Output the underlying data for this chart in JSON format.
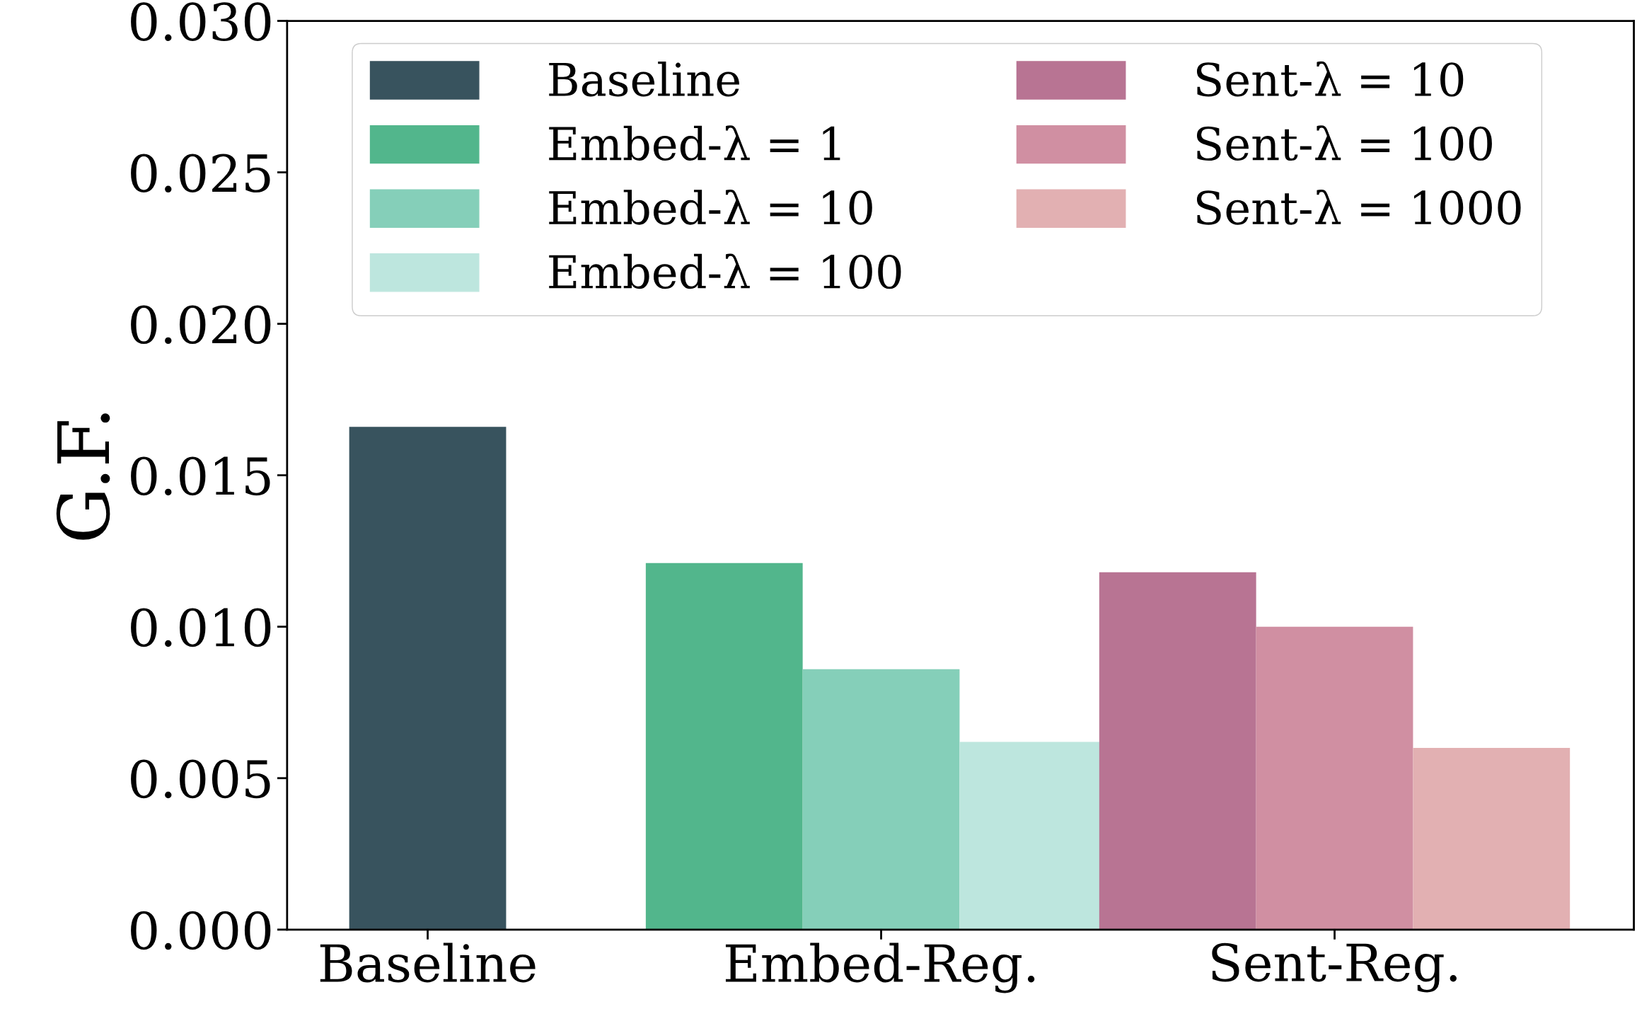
{
  "chart_data": {
    "type": "bar",
    "ylabel": "G.F.",
    "categories": [
      "Baseline",
      "Embed-Reg.",
      "Sent-Reg."
    ],
    "series": [
      {
        "name": "Baseline",
        "color": "#38535e",
        "values": [
          0.0166,
          null,
          null
        ]
      },
      {
        "name": "Embed-λ = 1",
        "color": "#52b68c",
        "values": [
          null,
          0.0121,
          null
        ]
      },
      {
        "name": "Embed-λ = 10",
        "color": "#85cfb9",
        "values": [
          null,
          0.0086,
          null
        ]
      },
      {
        "name": "Embed-λ = 100",
        "color": "#bde6de",
        "values": [
          null,
          0.0062,
          null
        ]
      },
      {
        "name": "Sent-λ = 10",
        "color": "#b87493",
        "values": [
          null,
          null,
          0.0118
        ]
      },
      {
        "name": "Sent-λ = 100",
        "color": "#d08fa2",
        "values": [
          null,
          null,
          0.01
        ]
      },
      {
        "name": "Sent-λ = 1000",
        "color": "#e2b0b2",
        "values": [
          null,
          null,
          0.006
        ]
      }
    ],
    "ylim": [
      0,
      0.03
    ],
    "yticks": [
      {
        "value": 0,
        "label": "0.000"
      },
      {
        "value": 0.005,
        "label": "0.005"
      },
      {
        "value": 0.01,
        "label": "0.010"
      },
      {
        "value": 0.015,
        "label": "0.015"
      },
      {
        "value": 0.02,
        "label": "0.020"
      },
      {
        "value": 0.025,
        "label": "0.025"
      },
      {
        "value": 0.03,
        "label": "0.030"
      }
    ],
    "grid": false,
    "legend": "top"
  }
}
